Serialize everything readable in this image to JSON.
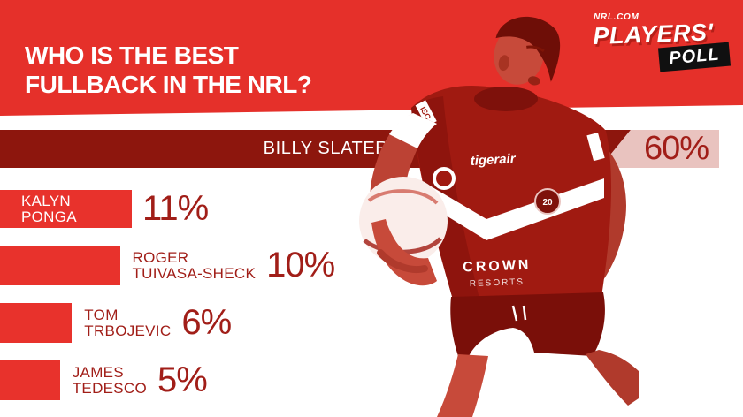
{
  "logo": {
    "site": "NRL.COM",
    "players": "PLAYERS'",
    "poll": "POLL"
  },
  "title": {
    "line1": "WHO IS THE BEST",
    "line2": "FULLBACK IN THE NRL?"
  },
  "poll": {
    "results": [
      {
        "name": "BILLY SLATER",
        "percent": "60%",
        "value": 60
      },
      {
        "name": "KALYN PONGA",
        "name_lines": [
          "KALYN",
          "PONGA"
        ],
        "percent": "11%",
        "value": 11
      },
      {
        "name": "ROGER TUIVASA-SHECK",
        "name_lines": [
          "ROGER",
          "TUIVASA-SHECK"
        ],
        "percent": "10%",
        "value": 10
      },
      {
        "name": "TOM TRBOJEVIC",
        "name_lines": [
          "TOM",
          "TRBOJEVIC"
        ],
        "percent": "6%",
        "value": 6
      },
      {
        "name": "JAMES TEDESCO",
        "name_lines": [
          "JAMES",
          "TEDESCO"
        ],
        "percent": "5%",
        "value": 5
      }
    ]
  },
  "player_image": {
    "description": "Billy Slater running with football, monochrome red duotone photo",
    "jersey_sponsor": "tigerair",
    "jersey_sponsor_lower": "CROWN",
    "jersey_sponsor_lower2": "RESORTS",
    "sleeve_brand": "ISC",
    "badge_text": "20"
  },
  "chart_data": {
    "type": "bar",
    "orientation": "horizontal",
    "title": "WHO IS THE BEST FULLBACK IN THE NRL?",
    "categories": [
      "BILLY SLATER",
      "KALYN PONGA",
      "ROGER TUIVASA-SHECK",
      "TOM TRBOJEVIC",
      "JAMES TEDESCO"
    ],
    "values": [
      60,
      11,
      10,
      6,
      5
    ],
    "unit": "%",
    "value_labels": [
      "60%",
      "11%",
      "10%",
      "6%",
      "5%"
    ],
    "legend": false,
    "axes": false
  },
  "colors": {
    "header_red": "#E5302A",
    "bar_red": "#E8322C",
    "winner_bar_maroon": "#8D160D",
    "label_box_pink": "#E9C3BF",
    "dark_red_text": "#A11E18",
    "logo_box_black": "#101010",
    "white_text": "#FFFFFF"
  }
}
